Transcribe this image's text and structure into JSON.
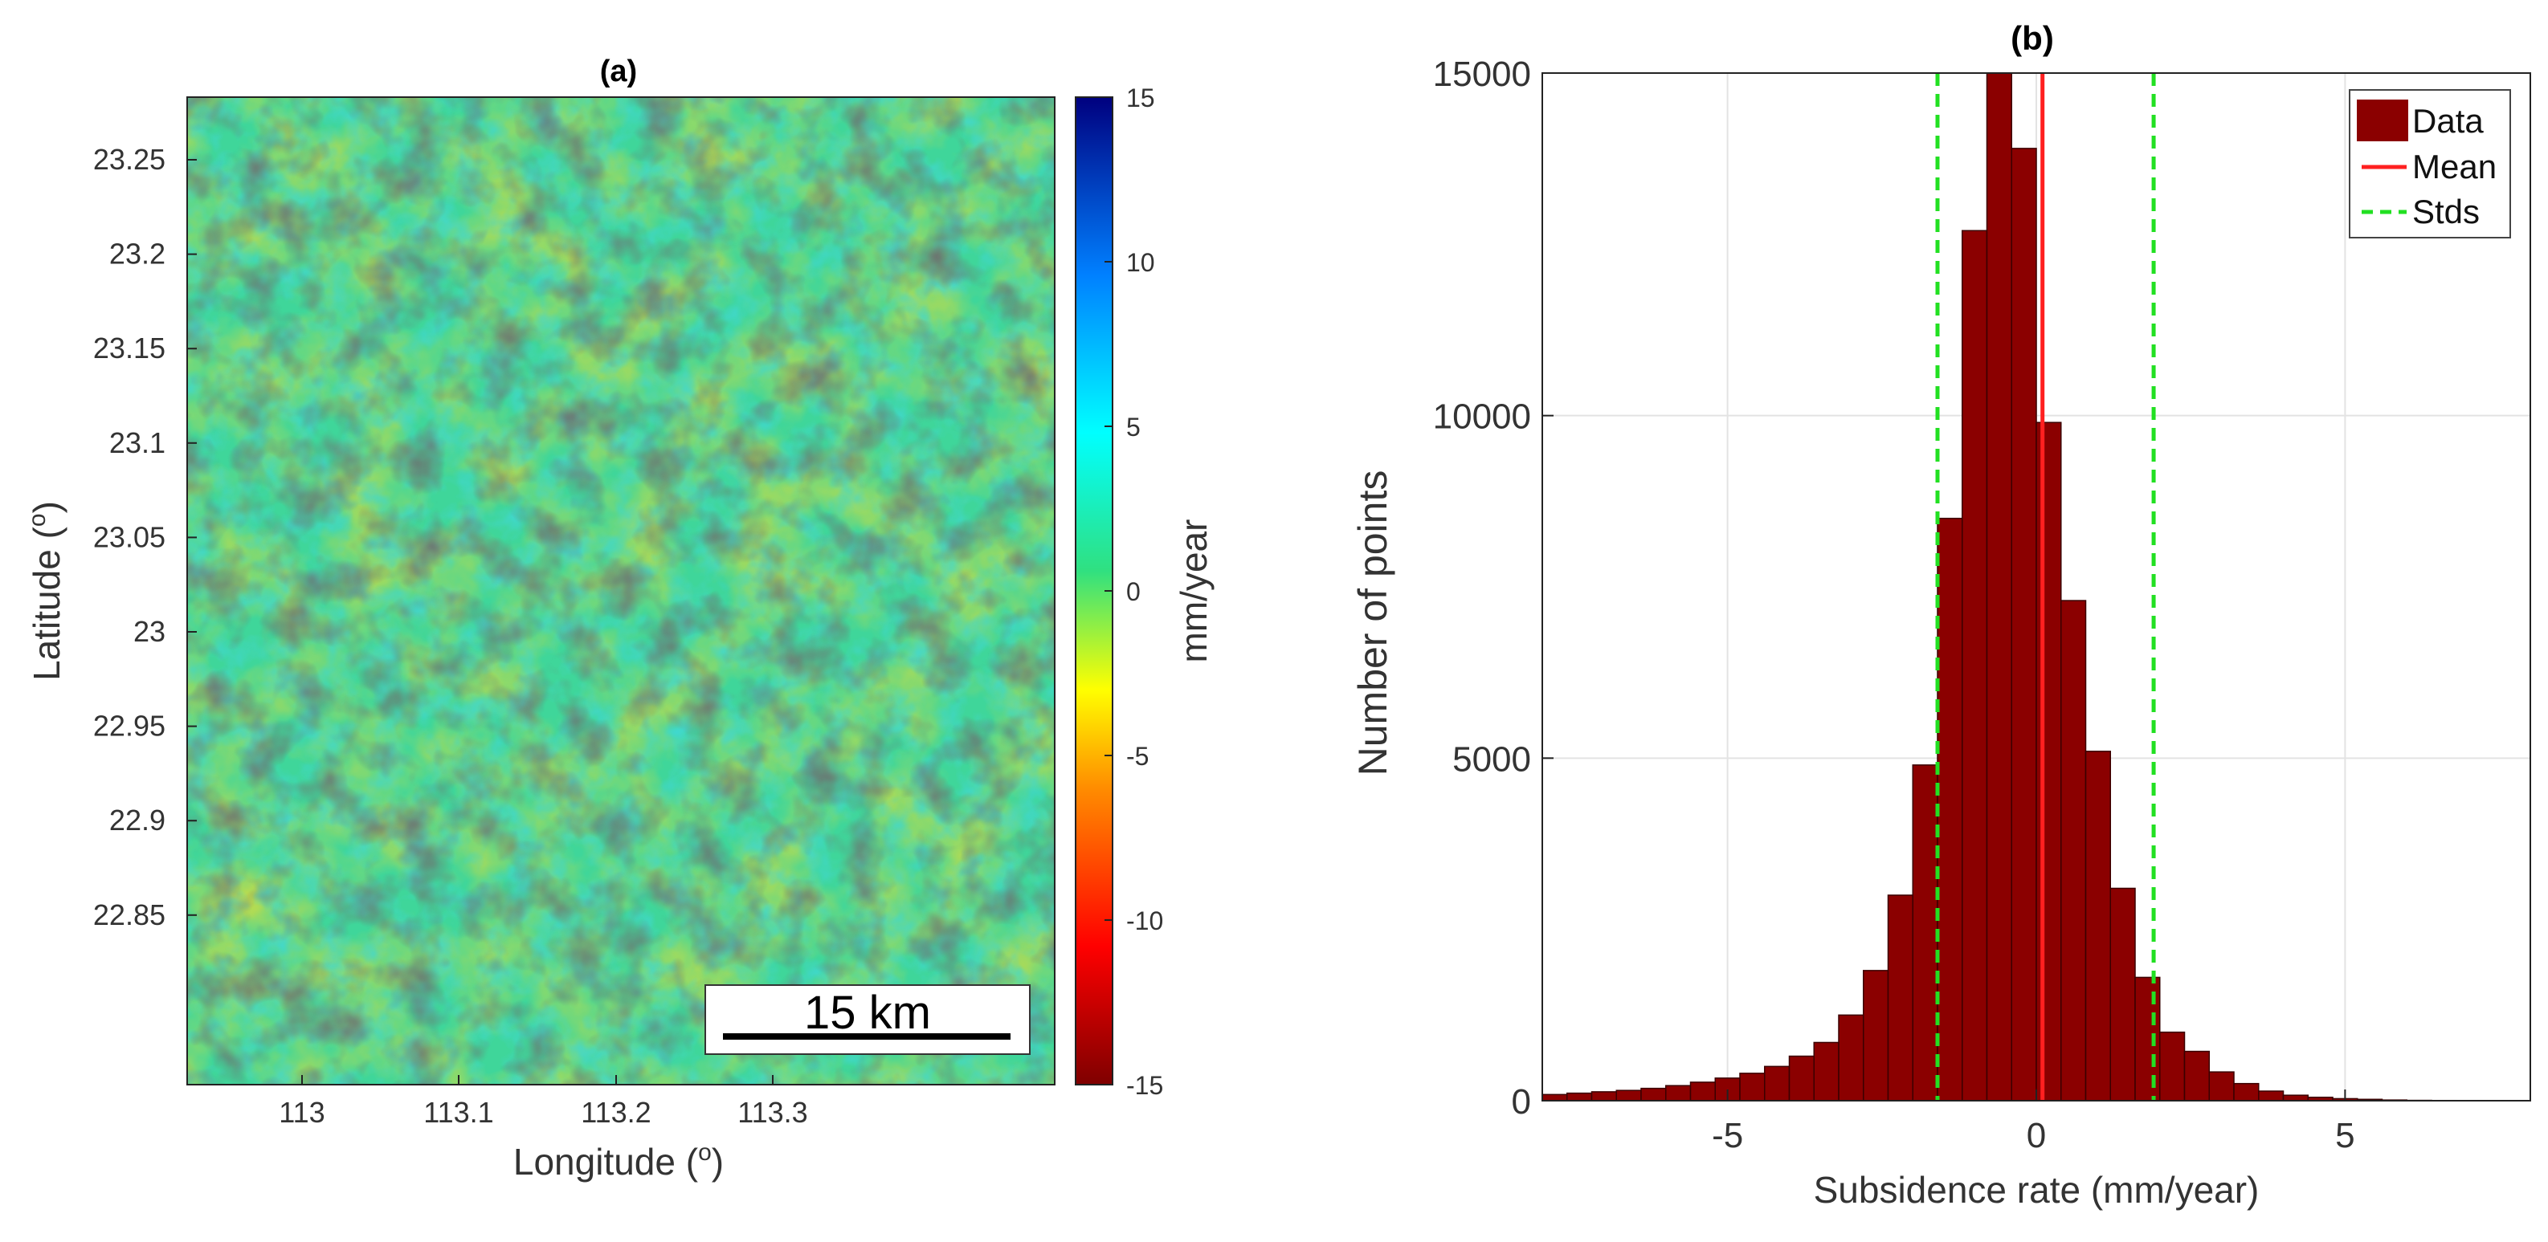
{
  "panel_a": {
    "title": "(a)",
    "xlabel": "Longitude (",
    "xlabel_sup": "o",
    "xlabel_end": ")",
    "ylabel": "Latitude (",
    "ylabel_sup": "o",
    "ylabel_end": ")",
    "x_ticks": [
      "113",
      "113.1",
      "113.2",
      "113.3"
    ],
    "y_ticks": [
      "23.25",
      "23.2",
      "23.15",
      "23.1",
      "23.05",
      "23",
      "22.95",
      "22.9",
      "22.85"
    ],
    "colorbar": {
      "label": "mm/year",
      "ticks": [
        "15",
        "10",
        "5",
        "0",
        "-5",
        "-10",
        "-15"
      ],
      "range": [
        -15,
        15
      ],
      "colors": [
        "#7f0000",
        "#ff0000",
        "#ff8c00",
        "#ffff00",
        "#00e08c",
        "#00ffff",
        "#0080ff",
        "#00007f"
      ]
    },
    "scalebar_label": "15 km",
    "map_description_colors": {
      "dominant": "#32d38c",
      "secondary": "#c8e040",
      "background": "#7a7a7a"
    }
  },
  "chart_data": {
    "type": "bar",
    "title": "(b)",
    "xlabel": "Subsidence rate (mm/year)",
    "ylabel": "Number of points",
    "xlim": [
      -8,
      8
    ],
    "ylim": [
      0,
      15000
    ],
    "x_ticks": [
      "-5",
      "0",
      "5"
    ],
    "y_ticks": [
      "0",
      "5000",
      "10000",
      "15000"
    ],
    "grid": true,
    "bin_width": 0.4,
    "bin_edges_start": -8,
    "values": [
      90,
      110,
      130,
      150,
      180,
      220,
      270,
      330,
      400,
      500,
      650,
      850,
      1250,
      1900,
      3000,
      4900,
      8500,
      12700,
      15300,
      13900,
      9900,
      7300,
      5100,
      3100,
      1800,
      1000,
      720,
      420,
      250,
      140,
      80,
      50,
      30,
      20,
      10,
      5,
      3,
      2,
      1,
      1
    ],
    "mean": 0.1,
    "std_lines": [
      -1.6,
      1.9
    ],
    "legend": {
      "position": "top-right",
      "items": [
        {
          "label": "Data",
          "type": "patch",
          "color": "#8b0000"
        },
        {
          "label": "Mean",
          "type": "line",
          "color": "#ff2020"
        },
        {
          "label": "Stds",
          "type": "dashed",
          "color": "#22e022"
        }
      ]
    },
    "bar_color": "#8b0000"
  }
}
